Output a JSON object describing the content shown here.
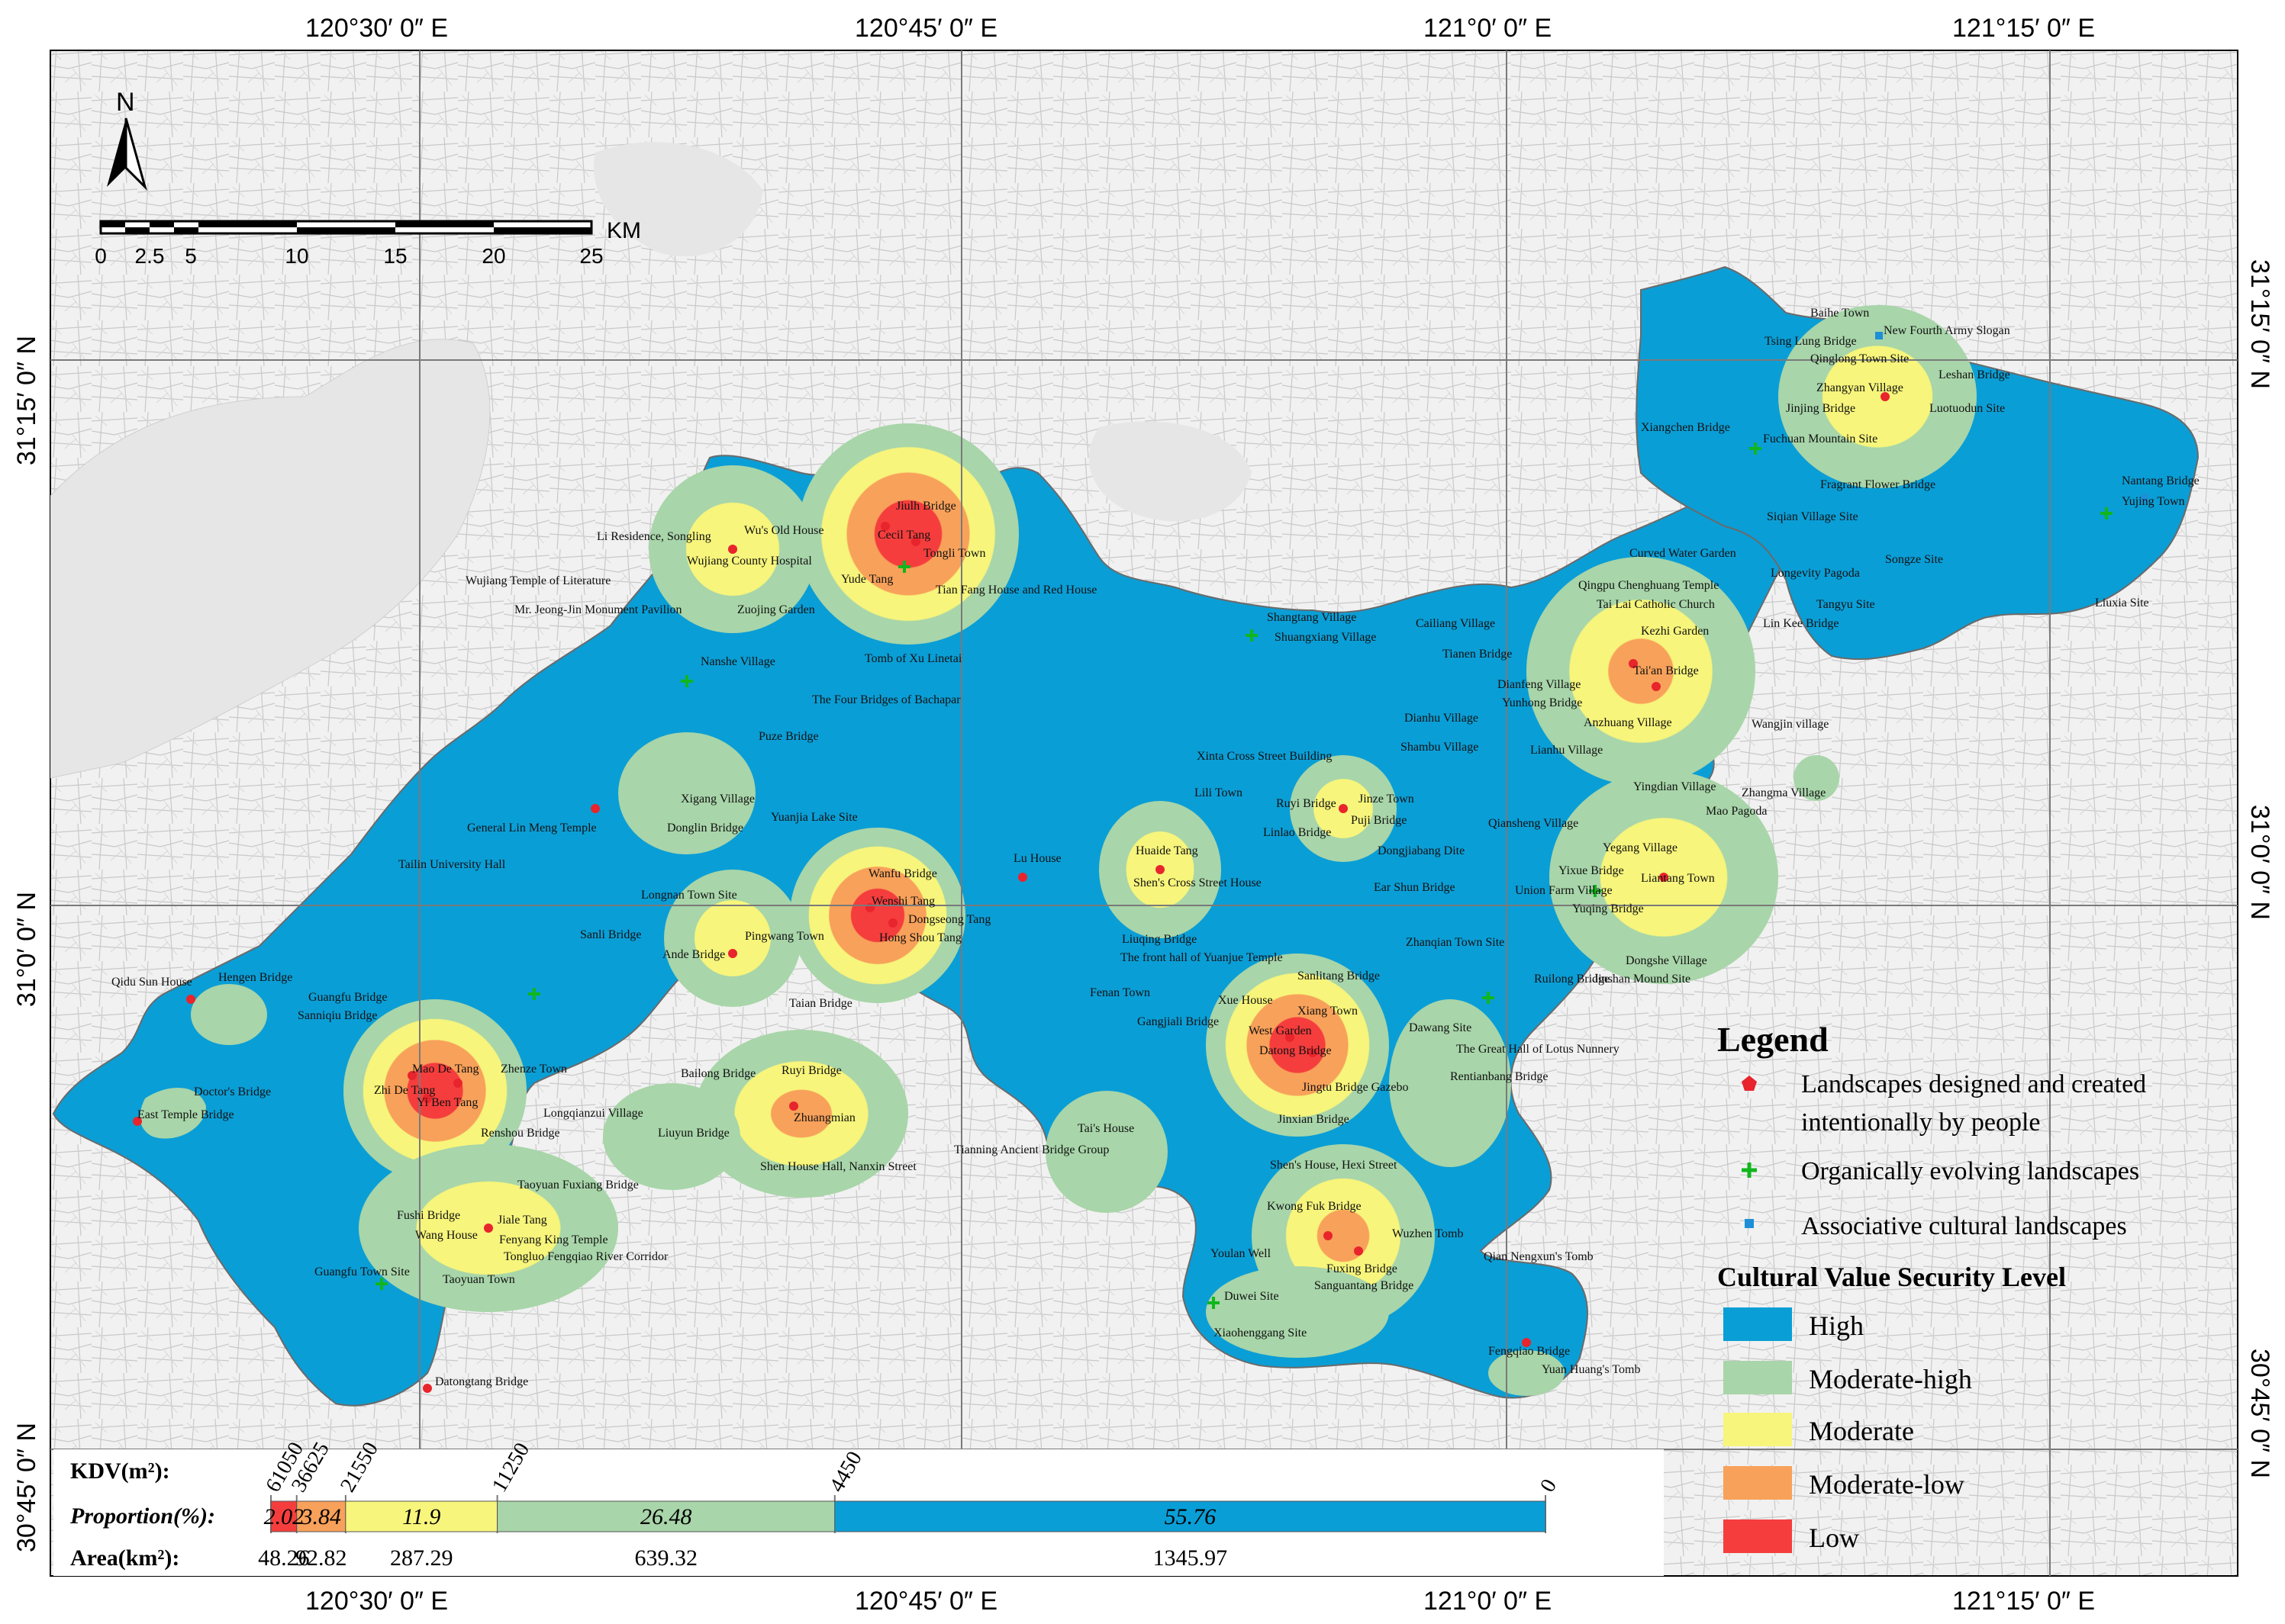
{
  "coordinates": {
    "top": [
      "120°30′ 0″ E",
      "120°45′ 0″ E",
      "121°0′ 0″ E",
      "121°15′ 0″ E"
    ],
    "bottom": [
      "120°30′ 0″ E",
      "120°45′ 0″ E",
      "121°0′ 0″ E",
      "121°15′ 0″ E"
    ],
    "left": [
      "31°15′ 0″ N",
      "31°0′ 0″ N",
      "30°45′ 0″ N"
    ],
    "right": [
      "31°15′ 0″ N",
      "31°0′ 0″ N",
      "30°45′ 0″ N"
    ]
  },
  "north_arrow": "N",
  "scale_bar": {
    "unit": "KM",
    "ticks": [
      "0",
      "2.5",
      "5",
      "10",
      "15",
      "20",
      "25"
    ]
  },
  "legend": {
    "title": "Legend",
    "point_types": [
      {
        "label_lines": [
          "Landscapes designed and created",
          "intentionally by people"
        ],
        "symbol": "pentagon",
        "color": "#e8242c"
      },
      {
        "label_lines": [
          "Organically evolving landscapes"
        ],
        "symbol": "cross",
        "color": "#11b61d"
      },
      {
        "label_lines": [
          "Associative cultural landscapes"
        ],
        "symbol": "square",
        "color": "#1d8fd6"
      }
    ],
    "security_title": "Cultural Value Security Level",
    "security_levels": [
      {
        "label": "High",
        "color": "#0a9ed6"
      },
      {
        "label": "Moderate-high",
        "color": "#a8d5a9"
      },
      {
        "label": "Moderate",
        "color": "#f7f57b"
      },
      {
        "label": "Moderate-low",
        "color": "#f8a15a"
      },
      {
        "label": "Low",
        "color": "#f53d3d"
      }
    ]
  },
  "kdv_bar": {
    "kdv_label": "KDV(m²):",
    "proportion_label": "Proportion(%):",
    "area_label": "Area(km²):",
    "kdv_breaks": [
      "61050",
      "36625",
      "21550",
      "11250",
      "4450",
      "0"
    ],
    "segments": [
      {
        "proportion": 2.02,
        "proportion_text": "2.02",
        "area": "48.26",
        "color": "#f53d3d"
      },
      {
        "proportion": 3.84,
        "proportion_text": "3.84",
        "area": "92.82",
        "color": "#f8a15a"
      },
      {
        "proportion": 11.9,
        "proportion_text": "11.9",
        "area": "287.29",
        "color": "#f7f57b"
      },
      {
        "proportion": 26.48,
        "proportion_text": "26.48",
        "area": "639.32",
        "color": "#a8d5a9"
      },
      {
        "proportion": 55.76,
        "proportion_text": "55.76",
        "area": "1345.97",
        "color": "#0a9ed6"
      }
    ]
  },
  "places": {
    "designed": [
      "Baihe Town",
      "New Fourth Army Slogan",
      "Tsing Lung Bridge",
      "Qinglong Town Site",
      "Leshan Bridge",
      "Zhangyan Village",
      "Jinjing Bridge",
      "Luotuodun Site",
      "Xiangchen Bridge",
      "Fuchuan Mountain Site",
      "Fragrant Flower Bridge",
      "Nantang Bridge",
      "Yujing Town",
      "Siqian Village Site",
      "Curved Water Garden",
      "Longevity Pagoda",
      "Songze Site",
      "Liuxia Site",
      "Qingpu Chenghuang Temple",
      "Tai Lai Catholic Church",
      "Tangyu Site",
      "Lin Kee Bridge",
      "Kezhi Garden",
      "Tai'an Bridge",
      "Cailiang Village",
      "Shangtang Village",
      "Shuangxiang Village",
      "Tianen Bridge",
      "Dianfeng Village",
      "Yunhong Bridge",
      "Dianhu Village",
      "Anzhuang Village",
      "Shambu Village",
      "Lianhu Village",
      "Wangjin village",
      "Yingdian Village",
      "Zhangma Village",
      "Mao Pagoda",
      "Xinta Cross Street Building",
      "Lili Town",
      "Ruyi Bridge",
      "Jinze Town",
      "Puji Bridge",
      "Linlao Bridge",
      "Dongjiabang Dite",
      "Qiansheng Village",
      "Yegang Village",
      "Yixue Bridge",
      "Liantang Town",
      "Union Farm Village",
      "Yuqing Bridge",
      "Ear Shun Bridge",
      "Zhanqian Town Site",
      "Dongshe Village",
      "Ruilong Bridge",
      "Jinshan Mound Site",
      "Huaide Tang",
      "Shen's Cross Street House",
      "Lu House",
      "Liuqing Bridge",
      "The front hall of Yuanjue Temple",
      "Sanlitang Bridge",
      "Fenan Town",
      "Gangjiali Bridge",
      "Xue House",
      "Xiang Town",
      "West Garden",
      "Datong Bridge",
      "Dawang Site",
      "The Great Hall of Lotus Nunnery",
      "Jingtu Bridge Gazebo",
      "Rentianbang Bridge",
      "Jinxian Bridge",
      "Tai's House",
      "Tianning Ancient Bridge Group",
      "Shen's House, Hexi Street",
      "Kwong Fuk Bridge",
      "Wuzhen Tomb",
      "Youlan Well",
      "Fuxing Bridge",
      "Sanguantang Bridge",
      "Qian Nengxun's Tomb",
      "Duwei Site",
      "Xiaohenggang Site",
      "Fengqiao Bridge",
      "Yuan Huang's Tomb",
      "Jiulh Bridge",
      "Wu's Old House",
      "Li Residence, Songling",
      "Cecil Tang",
      "Tongli Town",
      "Wujiang County Hospital",
      "Yude Tang",
      "Tian Fang House and Red House",
      "Wujiang Temple of Literature",
      "Mr. Jeong-Jin Monument Pavilion",
      "Zuojing Garden",
      "Nanshe Village",
      "Tomb of Xu Linetai",
      "The Four Bridges of Bachapar",
      "Puze Bridge",
      "Xigang Village",
      "Donglin Bridge",
      "General Lin Meng Temple",
      "Yuanjia Lake Site",
      "Tailin University Hall",
      "Longnan Town Site",
      "Wanfu Bridge",
      "Wenshi Tang",
      "Dongseong Tang",
      "Hong Shou Tang",
      "Sanli Bridge",
      "Pingwang Town",
      "Ande Bridge",
      "Taian Bridge",
      "Qidu Sun House",
      "Hengen Bridge",
      "Guangfu Bridge",
      "Sanniqiu Bridge",
      "Mao De Tang",
      "Zhenze Town",
      "Zhi De Tang",
      "Yi Ben Tang",
      "Doctor's Bridge",
      "East Temple Bridge",
      "Longqianzui Village",
      "Renshou Bridge",
      "Bailong Bridge",
      "Ruyi Bridge",
      "Zhuangmian",
      "Liuyun Bridge",
      "Shen House Hall, Nanxin Street",
      "Taoyuan Fuxiang Bridge",
      "Fushi Bridge",
      "Jiale Tang",
      "Wang House",
      "Fenyang King Temple",
      "Tongluo Fengqiao River Corridor",
      "Guangfu Town Site",
      "Taoyuan Town",
      "Datongtang Bridge"
    ]
  }
}
